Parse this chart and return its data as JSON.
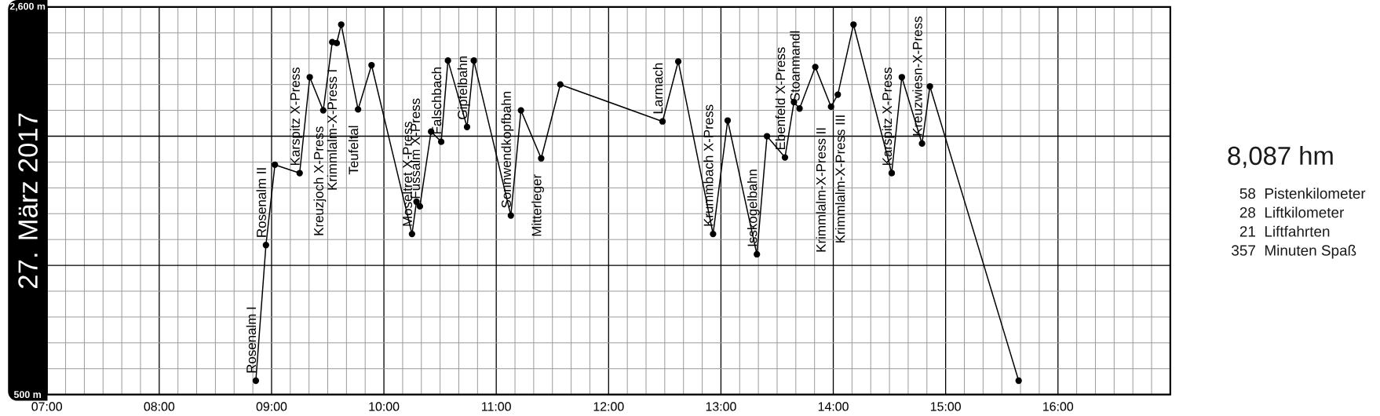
{
  "chart_data": {
    "type": "line",
    "title": "27. März 2017",
    "x": [
      8.86,
      8.95,
      9.03,
      9.25,
      9.34,
      9.46,
      9.54,
      9.58,
      9.62,
      9.77,
      9.89,
      10.25,
      10.29,
      10.32,
      10.42,
      10.51,
      10.57,
      10.74,
      10.8,
      11.13,
      11.22,
      11.4,
      11.57,
      12.48,
      12.62,
      12.93,
      13.06,
      13.32,
      13.41,
      13.57,
      13.65,
      13.7,
      13.84,
      13.98,
      14.04,
      14.18,
      14.52,
      14.61,
      14.79,
      14.86,
      15.65
    ],
    "values": [
      575,
      1310,
      1745,
      1700,
      2220,
      2040,
      2410,
      2405,
      2505,
      2045,
      2285,
      1370,
      1545,
      1520,
      1925,
      1870,
      2310,
      1950,
      2310,
      1470,
      2040,
      1780,
      2180,
      1980,
      2305,
      1370,
      1985,
      1260,
      1900,
      1785,
      2085,
      2050,
      2275,
      2060,
      2125,
      2505,
      1700,
      2220,
      1860,
      2170,
      575
    ],
    "color": "#000000",
    "marker": "circle",
    "line_style": "solid",
    "grid": true,
    "xlim": [
      7,
      17
    ],
    "ylim": [
      500,
      2600
    ],
    "xticks": [
      {
        "value": 7,
        "label": "07:00"
      },
      {
        "value": 8,
        "label": "08:00"
      },
      {
        "value": 9,
        "label": "09:00"
      },
      {
        "value": 10,
        "label": "10:00"
      },
      {
        "value": 11,
        "label": "11:00"
      },
      {
        "value": 12,
        "label": "12:00"
      },
      {
        "value": 13,
        "label": "13:00"
      },
      {
        "value": 14,
        "label": "14:00"
      },
      {
        "value": 15,
        "label": "15:00"
      },
      {
        "value": 16,
        "label": "16:00"
      },
      {
        "value": 17,
        "label": null
      }
    ],
    "yticks": [
      {
        "value": 500,
        "label": "500 m"
      },
      {
        "value": 1200,
        "label": null
      },
      {
        "value": 1900,
        "label": null
      },
      {
        "value": 2600,
        "label": "2,600 m"
      }
    ],
    "annotations": [
      {
        "text": "Rosenalm I",
        "x": 8.86,
        "y": 575
      },
      {
        "text": "Rosenalm II",
        "x": 8.95,
        "y": 1310
      },
      {
        "text": "Karspitz X-Press",
        "x": 9.25,
        "y": 1700
      },
      {
        "text": "Kreuzjoch X-Press",
        "x": 9.46,
        "y": 2040
      },
      {
        "text": "Krimmlalm-X-Press I",
        "x": 9.58,
        "y": 2405
      },
      {
        "text": "Teufeltal",
        "x": 9.77,
        "y": 2045
      },
      {
        "text": "Moseltret X-Press",
        "x": 10.25,
        "y": 1370
      },
      {
        "text": "Fussalm X-Press",
        "x": 10.32,
        "y": 1520
      },
      {
        "text": "Falschbach",
        "x": 10.51,
        "y": 1870
      },
      {
        "text": "Gipfelbahn",
        "x": 10.74,
        "y": 1950
      },
      {
        "text": "Sonnwendkopfbahn",
        "x": 11.13,
        "y": 1470
      },
      {
        "text": "Mitterleger",
        "x": 11.4,
        "y": 1780
      },
      {
        "text": "Larmach",
        "x": 12.48,
        "y": 1980
      },
      {
        "text": "Krummbach X-Press",
        "x": 12.93,
        "y": 1370
      },
      {
        "text": "Isskogelbahn",
        "x": 13.32,
        "y": 1260
      },
      {
        "text": "Ebenfeld X-Press",
        "x": 13.57,
        "y": 1785
      },
      {
        "text": "Stoanmandl",
        "x": 13.7,
        "y": 2050
      },
      {
        "text": "Krimmlalm-X-Press II",
        "x": 13.98,
        "y": 2060
      },
      {
        "text": "Krimmlalm-X-Press III",
        "x": 14.04,
        "y": 2125
      },
      {
        "text": "Karspitz X-Press",
        "x": 14.52,
        "y": 1700
      },
      {
        "text": "Kreuzwiesn-X-Press",
        "x": 14.79,
        "y": 1860
      },
      "8,087 hm",
      "58",
      "Pistenkilometer",
      "28",
      "Liftkilometer",
      "21",
      "Liftfahrten",
      "357",
      "Minuten Spaß"
    ]
  }
}
